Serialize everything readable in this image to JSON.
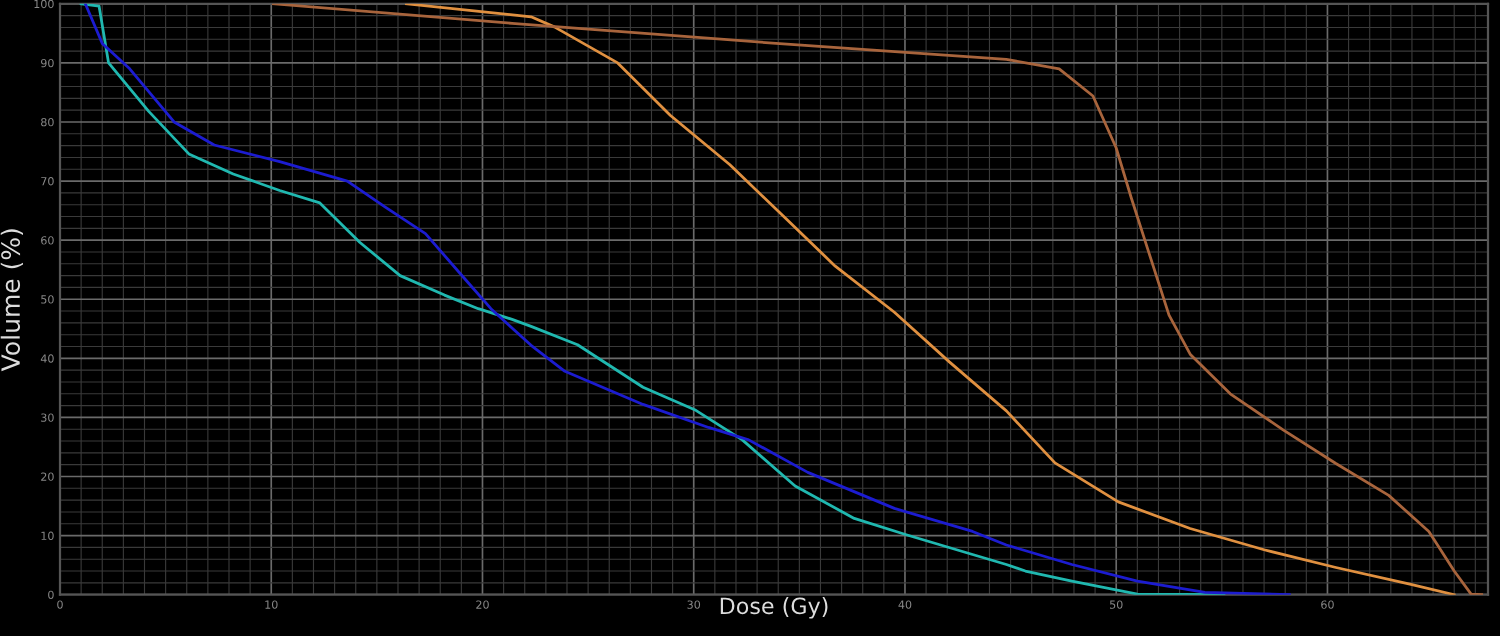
{
  "chart_data": {
    "type": "line",
    "xlabel": "Dose (Gy)",
    "ylabel": "Volume (%)",
    "xlim": [
      0,
      67.6
    ],
    "ylim": [
      0,
      100
    ],
    "xticks": [
      0,
      10,
      20,
      30,
      40,
      50,
      60
    ],
    "yticks": [
      0,
      10,
      20,
      30,
      40,
      50,
      60,
      70,
      80,
      90,
      100
    ],
    "grid": true,
    "marker": "none",
    "line_style": "solid",
    "series": [
      {
        "color": "#20b8b0",
        "x": [
          1.0,
          1.85,
          2.3,
          4.2,
          6.1,
          8.2,
          10.4,
          12.3,
          14.2,
          16.1,
          18.2,
          19.8,
          21.4,
          22.3,
          24.5,
          27.6,
          30.1,
          32.3,
          34.8,
          37.6,
          40.1,
          43.2,
          44.8,
          45.7,
          47.9,
          51.0,
          55.1
        ],
        "values": [
          100,
          99.6,
          90,
          81.8,
          74.6,
          71.2,
          68.4,
          66.3,
          59.6,
          54,
          50.7,
          48.4,
          46.6,
          45.4,
          42.3,
          35.1,
          31.2,
          26.2,
          18.4,
          12.9,
          10.1,
          6.8,
          5.1,
          4,
          2.3,
          0.1,
          0
        ]
      },
      {
        "color": "#1c1cd0",
        "x": [
          1.2,
          2.0,
          3.3,
          5.4,
          7.3,
          10.4,
          13.6,
          15.4,
          17.3,
          19.2,
          20.4,
          22.3,
          23.9,
          27.6,
          30.7,
          32.6,
          35.4,
          39.5,
          43.2,
          44.8,
          47.9,
          51.0,
          54.2,
          58.2
        ],
        "values": [
          100,
          93.3,
          89,
          80,
          76.1,
          73.3,
          70,
          65.6,
          61.1,
          53.3,
          48.4,
          42.2,
          37.8,
          32.2,
          28.3,
          26.2,
          20.7,
          14.6,
          10.7,
          8.4,
          5.1,
          2.3,
          0.4,
          0
        ]
      },
      {
        "color": "#e09040",
        "x": [
          16.4,
          22.3,
          23.4,
          26.4,
          28.9,
          31.7,
          34.2,
          36.7,
          39.5,
          42.1,
          44.8,
          47.1,
          50.1,
          53.5,
          57.0,
          60.4,
          63.9,
          66.0
        ],
        "values": [
          100,
          97.8,
          96.1,
          90,
          81.1,
          72.8,
          64.2,
          55.6,
          47.8,
          39.4,
          31.1,
          22.3,
          15.7,
          11.2,
          7.6,
          4.6,
          1.8,
          0
        ]
      },
      {
        "color": "#a8643c",
        "x": [
          10.1,
          21.4,
          33.9,
          44.8,
          47.3,
          48.9,
          50.0,
          50.7,
          51.5,
          52.5,
          53.5,
          55.4,
          57.9,
          60.4,
          62.9,
          64.8,
          66.0,
          66.8,
          67.3
        ],
        "values": [
          100,
          96.7,
          93.3,
          90.6,
          89,
          84.4,
          75.6,
          67.3,
          58.4,
          47.3,
          40.7,
          34,
          27.9,
          22.2,
          16.8,
          10.7,
          4,
          0.1,
          0
        ]
      }
    ]
  }
}
